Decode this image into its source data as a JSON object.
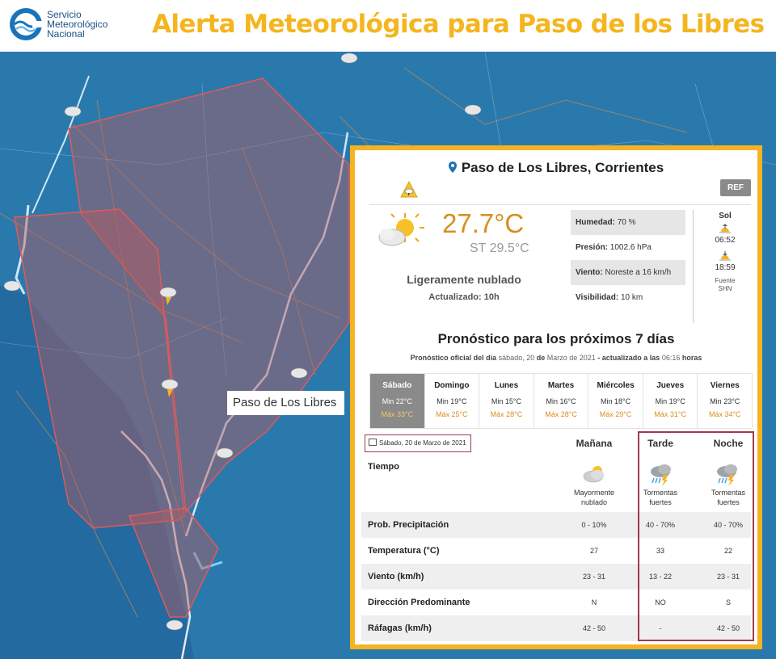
{
  "header": {
    "logo_lines": [
      "Servicio",
      "Meteorológico",
      "Nacional"
    ],
    "headline": "Alerta Meteorológica para Paso de los Libres"
  },
  "map": {
    "label": "Paso de Los Libres"
  },
  "panel": {
    "location": "Paso de Los Libres, Corrientes",
    "ref_label": "REF",
    "temperature": "27.7°C",
    "feels_like": "ST 29.5°C",
    "condition": "Ligeramente nublado",
    "updated": "Actualizado: 10h",
    "stats": [
      {
        "label": "Humedad:",
        "value": "70 %"
      },
      {
        "label": "Presión:",
        "value": "1002.6 hPa"
      },
      {
        "label": "Viento:",
        "value": "Noreste a 16 km/h"
      },
      {
        "label": "Visibilidad:",
        "value": "10 km"
      }
    ],
    "sun": {
      "title": "Sol",
      "sunrise": "06:52",
      "sunset": "18:59",
      "source_lines": [
        "Fuente",
        "SHN"
      ]
    },
    "forecast_title": "Pronóstico para los próximos 7 días",
    "forecast_sub": {
      "p1": "Pronóstico oficial del día",
      "p2": " sábado, 20",
      "p3": " de ",
      "p4": "Marzo de 2021",
      "p5": " - actualizado a las",
      "p6": " 06:16 ",
      "p7": "horas"
    },
    "days": [
      {
        "name": "Sábado",
        "min": "Min 22°C",
        "max": "Máx 33°C",
        "active": true
      },
      {
        "name": "Domingo",
        "min": "Min 19°C",
        "max": "Máx 25°C"
      },
      {
        "name": "Lunes",
        "min": "Min 15°C",
        "max": "Máx 28°C"
      },
      {
        "name": "Martes",
        "min": "Min 16°C",
        "max": "Máx 28°C"
      },
      {
        "name": "Miércoles",
        "min": "Min 18°C",
        "max": "Máx 29°C"
      },
      {
        "name": "Jueves",
        "min": "Min 19°C",
        "max": "Máx 31°C"
      },
      {
        "name": "Viernes",
        "min": "Min 23°C",
        "max": "Máx 34°C"
      }
    ],
    "date_tag": "Sábado, 20 de Marzo de 2021",
    "periods": [
      "Mañana",
      "Tarde",
      "Noche"
    ],
    "tiempo_label": "Tiempo",
    "weather": [
      {
        "lines": [
          "Mayormente",
          "nublado"
        ],
        "icon": "cloudy-sun-icon"
      },
      {
        "lines": [
          "Tormentas",
          "fuertes"
        ],
        "icon": "storm-icon"
      },
      {
        "lines": [
          "Tormentas",
          "fuertes"
        ],
        "icon": "storm-icon"
      }
    ],
    "rows": [
      {
        "label": "Prob. Precipitación",
        "values": [
          "0 - 10%",
          "40 - 70%",
          "40 - 70%"
        ]
      },
      {
        "label": "Temperatura (°C)",
        "values": [
          "27",
          "33",
          "22"
        ]
      },
      {
        "label": "Viento (km/h)",
        "values": [
          "23 - 31",
          "13 - 22",
          "23 - 31"
        ]
      },
      {
        "label": "Dirección Predominante",
        "values": [
          "N",
          "NO",
          "S"
        ]
      },
      {
        "label": "Ráfagas (km/h)",
        "values": [
          "42 - 50",
          "-",
          "42 - 50"
        ]
      }
    ]
  },
  "colors": {
    "accent": "#f4b51f",
    "map_water": "#1e6fa6",
    "alert_zone": "#d9534f",
    "highlight": "#a0394f"
  }
}
